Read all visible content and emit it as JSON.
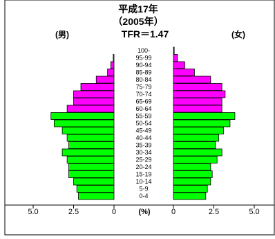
{
  "chart_data": {
    "type": "bar",
    "title_line1": "平成17年",
    "title_line2": "（2005年）",
    "title_line3": "TFR＝1.47",
    "male_label": "(男)",
    "female_label": "(女)",
    "unit_label": "(%)",
    "categories": [
      "100-",
      "95-99",
      "90-94",
      "85-89",
      "80-84",
      "75-79",
      "70-74",
      "65-69",
      "60-64",
      "55-59",
      "50-54",
      "45-49",
      "40-44",
      "35-39",
      "30-34",
      "25-29",
      "20-24",
      "15-19",
      "10-14",
      "5-9",
      "0-4"
    ],
    "x_ticks_male": [
      "5.0",
      "2.5",
      "0"
    ],
    "x_ticks_female": [
      "0",
      "2.5",
      "5.0"
    ],
    "xlim": [
      0,
      5.0
    ],
    "colors": {
      "pre_war": "#ff00ff",
      "post_war": "#00ff00",
      "outline": "#000000"
    },
    "series": [
      {
        "name": "(男)",
        "values": [
          0.0,
          0.05,
          0.2,
          0.4,
          1.1,
          2.05,
          2.5,
          2.5,
          2.9,
          3.9,
          3.7,
          3.2,
          2.9,
          2.8,
          3.2,
          2.9,
          2.8,
          2.8,
          2.5,
          2.3,
          2.2
        ],
        "pre_war_count": 9
      },
      {
        "name": "(女)",
        "values": [
          0.05,
          0.25,
          0.7,
          1.3,
          2.3,
          3.0,
          3.2,
          3.0,
          3.0,
          3.8,
          3.5,
          3.1,
          2.8,
          2.6,
          3.0,
          2.7,
          2.3,
          2.4,
          2.3,
          2.1,
          2.0
        ],
        "pre_war_count": 9
      }
    ]
  }
}
